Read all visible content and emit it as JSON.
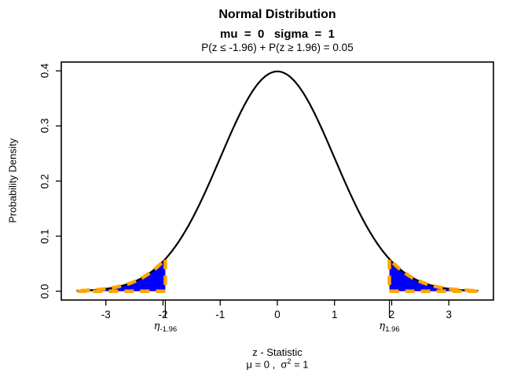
{
  "chart_data": {
    "type": "area",
    "title": "Normal Distribution",
    "subtitle": "mu  =  0   sigma  =  1",
    "annotation": "P(z ≤ -1.96) + P(z ≥ 1.96) = 0.05",
    "xlabel": "z - Statistic",
    "xlabel_sub": {
      "pre": "μ = 0 ,  σ",
      "sup": "2",
      "post": " = 1"
    },
    "ylabel": "Probability Density",
    "distribution": {
      "name": "standard-normal",
      "mu": 0,
      "sigma": 1
    },
    "curve_range": [
      -3.5,
      3.5
    ],
    "xlim": [
      -3.78,
      3.78
    ],
    "ylim": [
      -0.016,
      0.416
    ],
    "x_ticks": [
      -3,
      -2,
      -1,
      0,
      1,
      2,
      3
    ],
    "y_ticks": [
      "0.0",
      "0.1",
      "0.2",
      "0.3",
      "0.4"
    ],
    "critical_values": [
      -1.96,
      1.96
    ],
    "tail_probability": 0.05,
    "reference_points": [
      {
        "z": -3.0,
        "density": 0.0044
      },
      {
        "z": -1.96,
        "density": 0.0584
      },
      {
        "z": -1.0,
        "density": 0.242
      },
      {
        "z": 0.0,
        "density": 0.3989
      },
      {
        "z": 1.0,
        "density": 0.242
      },
      {
        "z": 1.96,
        "density": 0.0584
      },
      {
        "z": 3.0,
        "density": 0.0044
      }
    ],
    "eta_labels": [
      {
        "base": "η",
        "sub": "-1.96"
      },
      {
        "base": "η",
        "sub": "1.96"
      }
    ],
    "colors": {
      "curve": "#000000",
      "tail_fill": "#0000FF",
      "tail_outline": "#FFA500",
      "axis": "#000000",
      "background": "#FFFFFF"
    },
    "grid": false,
    "legend": null
  }
}
